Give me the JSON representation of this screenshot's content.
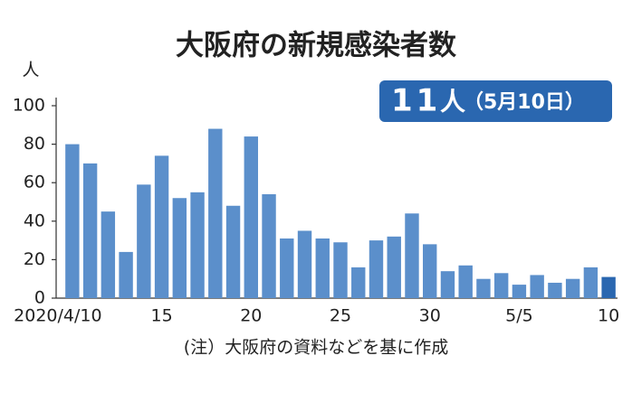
{
  "chart_data": {
    "type": "bar",
    "title": "大阪府の新規感染者数",
    "y_label": "人",
    "annotation": {
      "number": "11",
      "unit": "人",
      "date": "（5月10日）"
    },
    "note": "(注）大阪府の資料などを基に作成",
    "categories": [
      "2020/4/10",
      null,
      null,
      null,
      null,
      "15",
      null,
      null,
      null,
      null,
      "20",
      null,
      null,
      null,
      null,
      "25",
      null,
      null,
      null,
      null,
      "30",
      null,
      null,
      null,
      null,
      "5/5",
      null,
      null,
      null,
      null,
      "10"
    ],
    "values": [
      80,
      70,
      45,
      24,
      59,
      74,
      52,
      55,
      88,
      48,
      84,
      54,
      31,
      35,
      31,
      29,
      16,
      30,
      32,
      44,
      28,
      14,
      17,
      10,
      13,
      7,
      12,
      8,
      10,
      16,
      11
    ],
    "colors": [
      "#5b8fcb",
      "#5b8fcb",
      "#5b8fcb",
      "#5b8fcb",
      "#5b8fcb",
      "#5b8fcb",
      "#5b8fcb",
      "#5b8fcb",
      "#5b8fcb",
      "#5b8fcb",
      "#5b8fcb",
      "#5b8fcb",
      "#5b8fcb",
      "#5b8fcb",
      "#5b8fcb",
      "#5b8fcb",
      "#5b8fcb",
      "#5b8fcb",
      "#5b8fcb",
      "#5b8fcb",
      "#5b8fcb",
      "#5b8fcb",
      "#5b8fcb",
      "#5b8fcb",
      "#5b8fcb",
      "#5b8fcb",
      "#5b8fcb",
      "#5b8fcb",
      "#5b8fcb",
      "#5b8fcb",
      "#2a67b0"
    ],
    "ylim": [
      0,
      100
    ],
    "yticks": [
      0,
      20,
      40,
      60,
      80,
      100
    ],
    "grid": false
  }
}
